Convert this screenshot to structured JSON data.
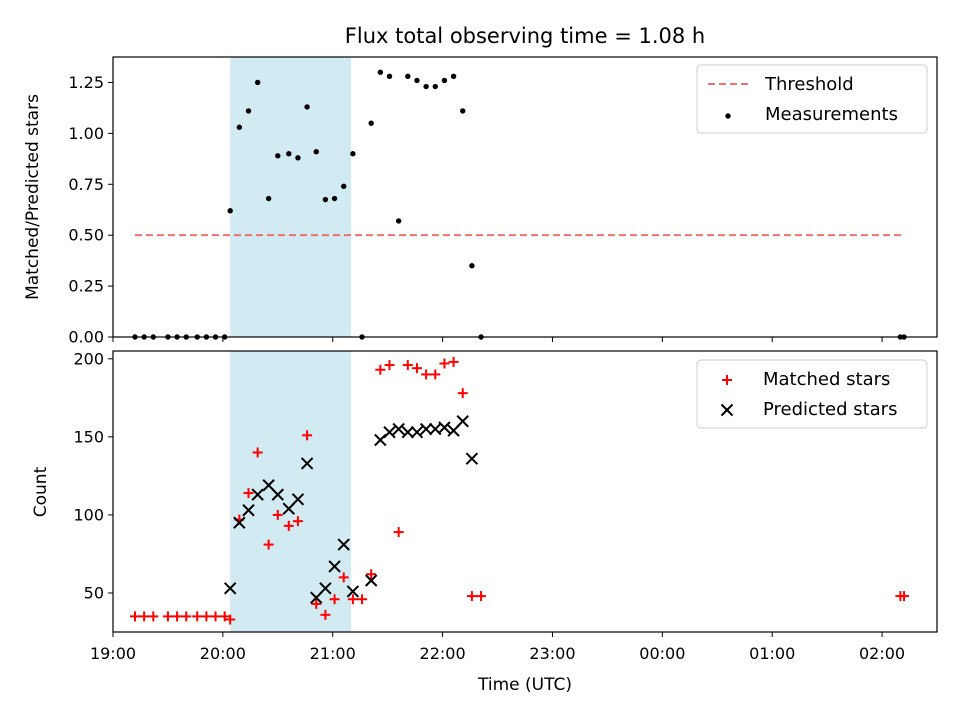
{
  "colors": {
    "threshold": "#f07070",
    "measurement": "#000000",
    "matched": "#ff0000",
    "predicted": "#000000",
    "observing_window": "#add8e6"
  },
  "chart_data": [
    {
      "type": "scatter",
      "title": "Flux total observing time = 1.08 h",
      "xlabel": "",
      "ylabel": "Matched/Predicted stars",
      "xlim": [
        "19:00",
        "02:30"
      ],
      "ylim": [
        0,
        1.375
      ],
      "yticks": [
        "0.00",
        "0.25",
        "0.50",
        "0.75",
        "1.00",
        "1.25"
      ],
      "shaded_span": {
        "start": "20:04",
        "end": "21:10"
      },
      "legend": {
        "position": "top-right",
        "entries": [
          "Threshold",
          "Measurements"
        ]
      },
      "series": [
        {
          "name": "Threshold",
          "kind": "dashed-line",
          "x": [
            "19:12",
            "02:11"
          ],
          "y": [
            0.5,
            0.5
          ]
        },
        {
          "name": "Measurements",
          "kind": "dot",
          "x": [
            "19:12",
            "19:17",
            "19:22",
            "19:30",
            "19:35",
            "19:40",
            "19:46",
            "19:51",
            "19:56",
            "20:01",
            "20:04",
            "20:09",
            "20:14",
            "20:19",
            "20:25",
            "20:30",
            "20:36",
            "20:41",
            "20:46",
            "20:51",
            "20:56",
            "21:01",
            "21:06",
            "21:11",
            "21:16",
            "21:21",
            "21:26",
            "21:31",
            "21:36",
            "21:41",
            "21:46",
            "21:51",
            "21:56",
            "22:01",
            "22:06",
            "22:11",
            "22:16",
            "22:21",
            "02:10",
            "02:12"
          ],
          "y": [
            0,
            0,
            0,
            0,
            0,
            0,
            0,
            0,
            0,
            0,
            0.62,
            1.03,
            1.11,
            1.25,
            0.68,
            0.89,
            0.9,
            0.88,
            1.13,
            0.91,
            0.675,
            0.68,
            0.74,
            0.9,
            0,
            1.05,
            1.3,
            1.28,
            0.57,
            1.28,
            1.26,
            1.23,
            1.23,
            1.26,
            1.28,
            1.11,
            0.35,
            0,
            0,
            0
          ]
        }
      ]
    },
    {
      "type": "scatter",
      "title": "",
      "xlabel": "Time (UTC)",
      "ylabel": "Count",
      "xlim": [
        "19:00",
        "02:30"
      ],
      "ylim": [
        25,
        205
      ],
      "yticks": [
        "50",
        "100",
        "150",
        "200"
      ],
      "xticks": [
        "19:00",
        "20:00",
        "21:00",
        "22:00",
        "23:00",
        "00:00",
        "01:00",
        "02:00"
      ],
      "shaded_span": {
        "start": "20:04",
        "end": "21:10"
      },
      "legend": {
        "position": "top-right",
        "entries": [
          "Matched stars",
          "Predicted stars"
        ]
      },
      "series": [
        {
          "name": "Matched stars",
          "marker": "+",
          "x": [
            "19:12",
            "19:17",
            "19:22",
            "19:30",
            "19:35",
            "19:40",
            "19:46",
            "19:51",
            "19:56",
            "20:01",
            "20:04",
            "20:09",
            "20:14",
            "20:19",
            "20:25",
            "20:30",
            "20:36",
            "20:41",
            "20:46",
            "20:51",
            "20:56",
            "21:01",
            "21:06",
            "21:11",
            "21:16",
            "21:21",
            "21:26",
            "21:31",
            "21:36",
            "21:41",
            "21:46",
            "21:51",
            "21:56",
            "22:01",
            "22:06",
            "22:11",
            "22:16",
            "22:21",
            "02:10",
            "02:12"
          ],
          "y": [
            35,
            35,
            35,
            35,
            35,
            35,
            35,
            35,
            35,
            35,
            33,
            97,
            114,
            140,
            81,
            100,
            93,
            96,
            151,
            43,
            36,
            46,
            60,
            46,
            46,
            62,
            193,
            196,
            89,
            196,
            194,
            190,
            190,
            197,
            198,
            178,
            48,
            48,
            48,
            48
          ]
        },
        {
          "name": "Predicted stars",
          "marker": "x",
          "x": [
            "20:04",
            "20:09",
            "20:14",
            "20:19",
            "20:25",
            "20:30",
            "20:36",
            "20:41",
            "20:46",
            "20:51",
            "20:56",
            "21:01",
            "21:06",
            "21:11",
            "21:21",
            "21:26",
            "21:31",
            "21:36",
            "21:41",
            "21:46",
            "21:51",
            "21:56",
            "22:01",
            "22:06",
            "22:11",
            "22:16"
          ],
          "y": [
            53,
            95,
            103,
            113,
            119,
            113,
            104,
            110,
            133,
            47,
            53,
            67,
            81,
            51,
            58,
            148,
            153,
            155,
            153,
            153,
            155,
            155,
            156,
            154,
            160,
            136
          ]
        }
      ]
    }
  ]
}
